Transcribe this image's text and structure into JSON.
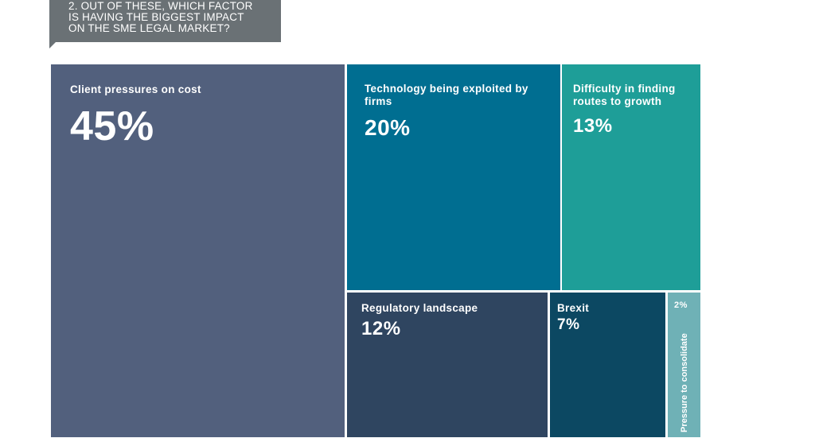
{
  "question": "2. OUT OF THESE, WHICH FACTOR IS HAVING THE BIGGEST IMPACT ON THE SME LEGAL MARKET?",
  "colors": {
    "question_bg": "#6a7175",
    "client": "#52607d",
    "technology": "#006e91",
    "difficulty": "#1e9e98",
    "regulatory": "#2f4560",
    "brexit": "#0c4862",
    "pressure": "#6fb1b6"
  },
  "chart_data": {
    "type": "treemap",
    "unit": "%",
    "items": [
      {
        "key": "client",
        "label": "Client pressures on cost",
        "value": 45,
        "display": "45%"
      },
      {
        "key": "technology",
        "label": "Technology being exploited by firms",
        "value": 20,
        "display": "20%"
      },
      {
        "key": "difficulty",
        "label": "Difficulty in finding routes to growth",
        "value": 13,
        "display": "13%"
      },
      {
        "key": "regulatory",
        "label": "Regulatory landscape",
        "value": 12,
        "display": "12%"
      },
      {
        "key": "brexit",
        "label": "Brexit",
        "value": 7,
        "display": "7%"
      },
      {
        "key": "pressure",
        "label": "Pressure to consolidate",
        "value": 2,
        "display": "2%"
      }
    ]
  }
}
